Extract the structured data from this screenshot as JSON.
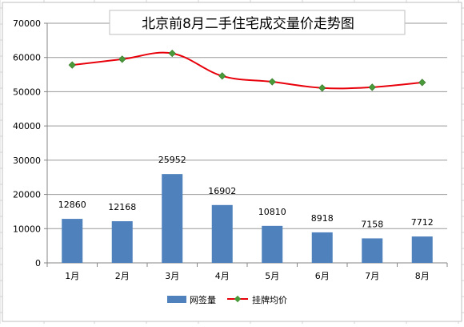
{
  "chart_data": {
    "type": "bar",
    "title": "北京前8月二手住宅成交量价走势图",
    "categories": [
      "1月",
      "2月",
      "3月",
      "4月",
      "5月",
      "6月",
      "7月",
      "8月"
    ],
    "ylim": [
      0,
      70000
    ],
    "yticks": [
      0,
      10000,
      20000,
      30000,
      40000,
      50000,
      60000,
      70000
    ],
    "grid": true,
    "legend_position": "bottom",
    "series": [
      {
        "name": "网签量",
        "type": "bar",
        "color": "#4f81bd",
        "values": [
          12860,
          12168,
          25952,
          16902,
          10810,
          8918,
          7158,
          7712
        ],
        "labels": [
          "12860",
          "12168",
          "25952",
          "16902",
          "10810",
          "8918",
          "7158",
          "7712"
        ]
      },
      {
        "name": "挂牌均价",
        "type": "line",
        "color": "#e8000b",
        "marker_color": "#4a9a3a",
        "values": [
          57800,
          59500,
          61200,
          54600,
          52900,
          51100,
          51300,
          52700
        ]
      }
    ]
  }
}
